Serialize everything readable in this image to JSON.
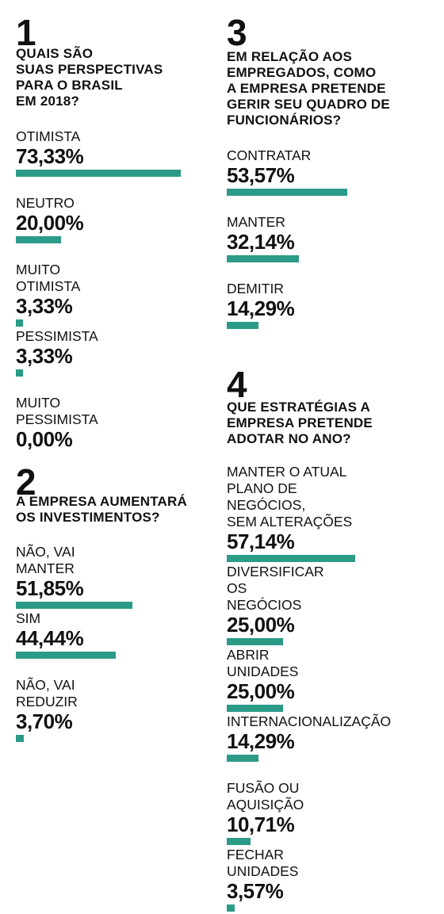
{
  "accent_color": "#2b9b88",
  "chart_data": [
    {
      "type": "bar",
      "number": "1",
      "title": "QUAIS SÃO\nSUAS PERSPECTIVAS\nPARA O BRASIL\nEM 2018?",
      "categories": [
        "OTIMISTA",
        "NEUTRO",
        "MUITO OTIMISTA",
        "PESSIMISTA",
        "MUITO PESSIMISTA"
      ],
      "values": [
        73.33,
        20.0,
        3.33,
        3.33,
        0.0
      ],
      "value_labels": [
        "73,33%",
        "20,00%",
        "3,33%",
        "3,33%",
        "0,00%"
      ]
    },
    {
      "type": "bar",
      "number": "2",
      "title": "A EMPRESA AUMENTARÁ\nOS INVESTIMENTOS?",
      "categories": [
        "NÃO, VAI MANTER",
        "SIM",
        "NÃO, VAI REDUZIR"
      ],
      "values": [
        51.85,
        44.44,
        3.7
      ],
      "value_labels": [
        "51,85%",
        "44,44%",
        "3,70%"
      ]
    },
    {
      "type": "bar",
      "number": "3",
      "title": "EM RELAÇÃO AOS\nEMPREGADOS, COMO\nA EMPRESA PRETENDE\nGERIR SEU QUADRO DE\nFUNCIONÁRIOS?",
      "categories": [
        "CONTRATAR",
        "MANTER",
        "DEMITIR"
      ],
      "values": [
        53.57,
        32.14,
        14.29
      ],
      "value_labels": [
        "53,57%",
        "32,14%",
        "14,29%"
      ]
    },
    {
      "type": "bar",
      "number": "4",
      "title": "QUE ESTRATÉGIAS A\nEMPRESA PRETENDE\nADOTAR NO ANO?",
      "categories": [
        "MANTER O ATUAL\nPLANO DE NEGÓCIOS,\nSEM ALTERAÇÕES",
        "DIVERSIFICAR OS\nNEGÓCIOS",
        "ABRIR UNIDADES",
        "INTERNACIONALIZAÇÃO",
        "FUSÃO OU AQUISIÇÃO",
        "FECHAR UNIDADES"
      ],
      "values": [
        57.14,
        25.0,
        25.0,
        14.29,
        10.71,
        3.57
      ],
      "value_labels": [
        "57,14%",
        "25,00%",
        "25,00%",
        "14,29%",
        "10,71%",
        "3,57%"
      ]
    }
  ]
}
